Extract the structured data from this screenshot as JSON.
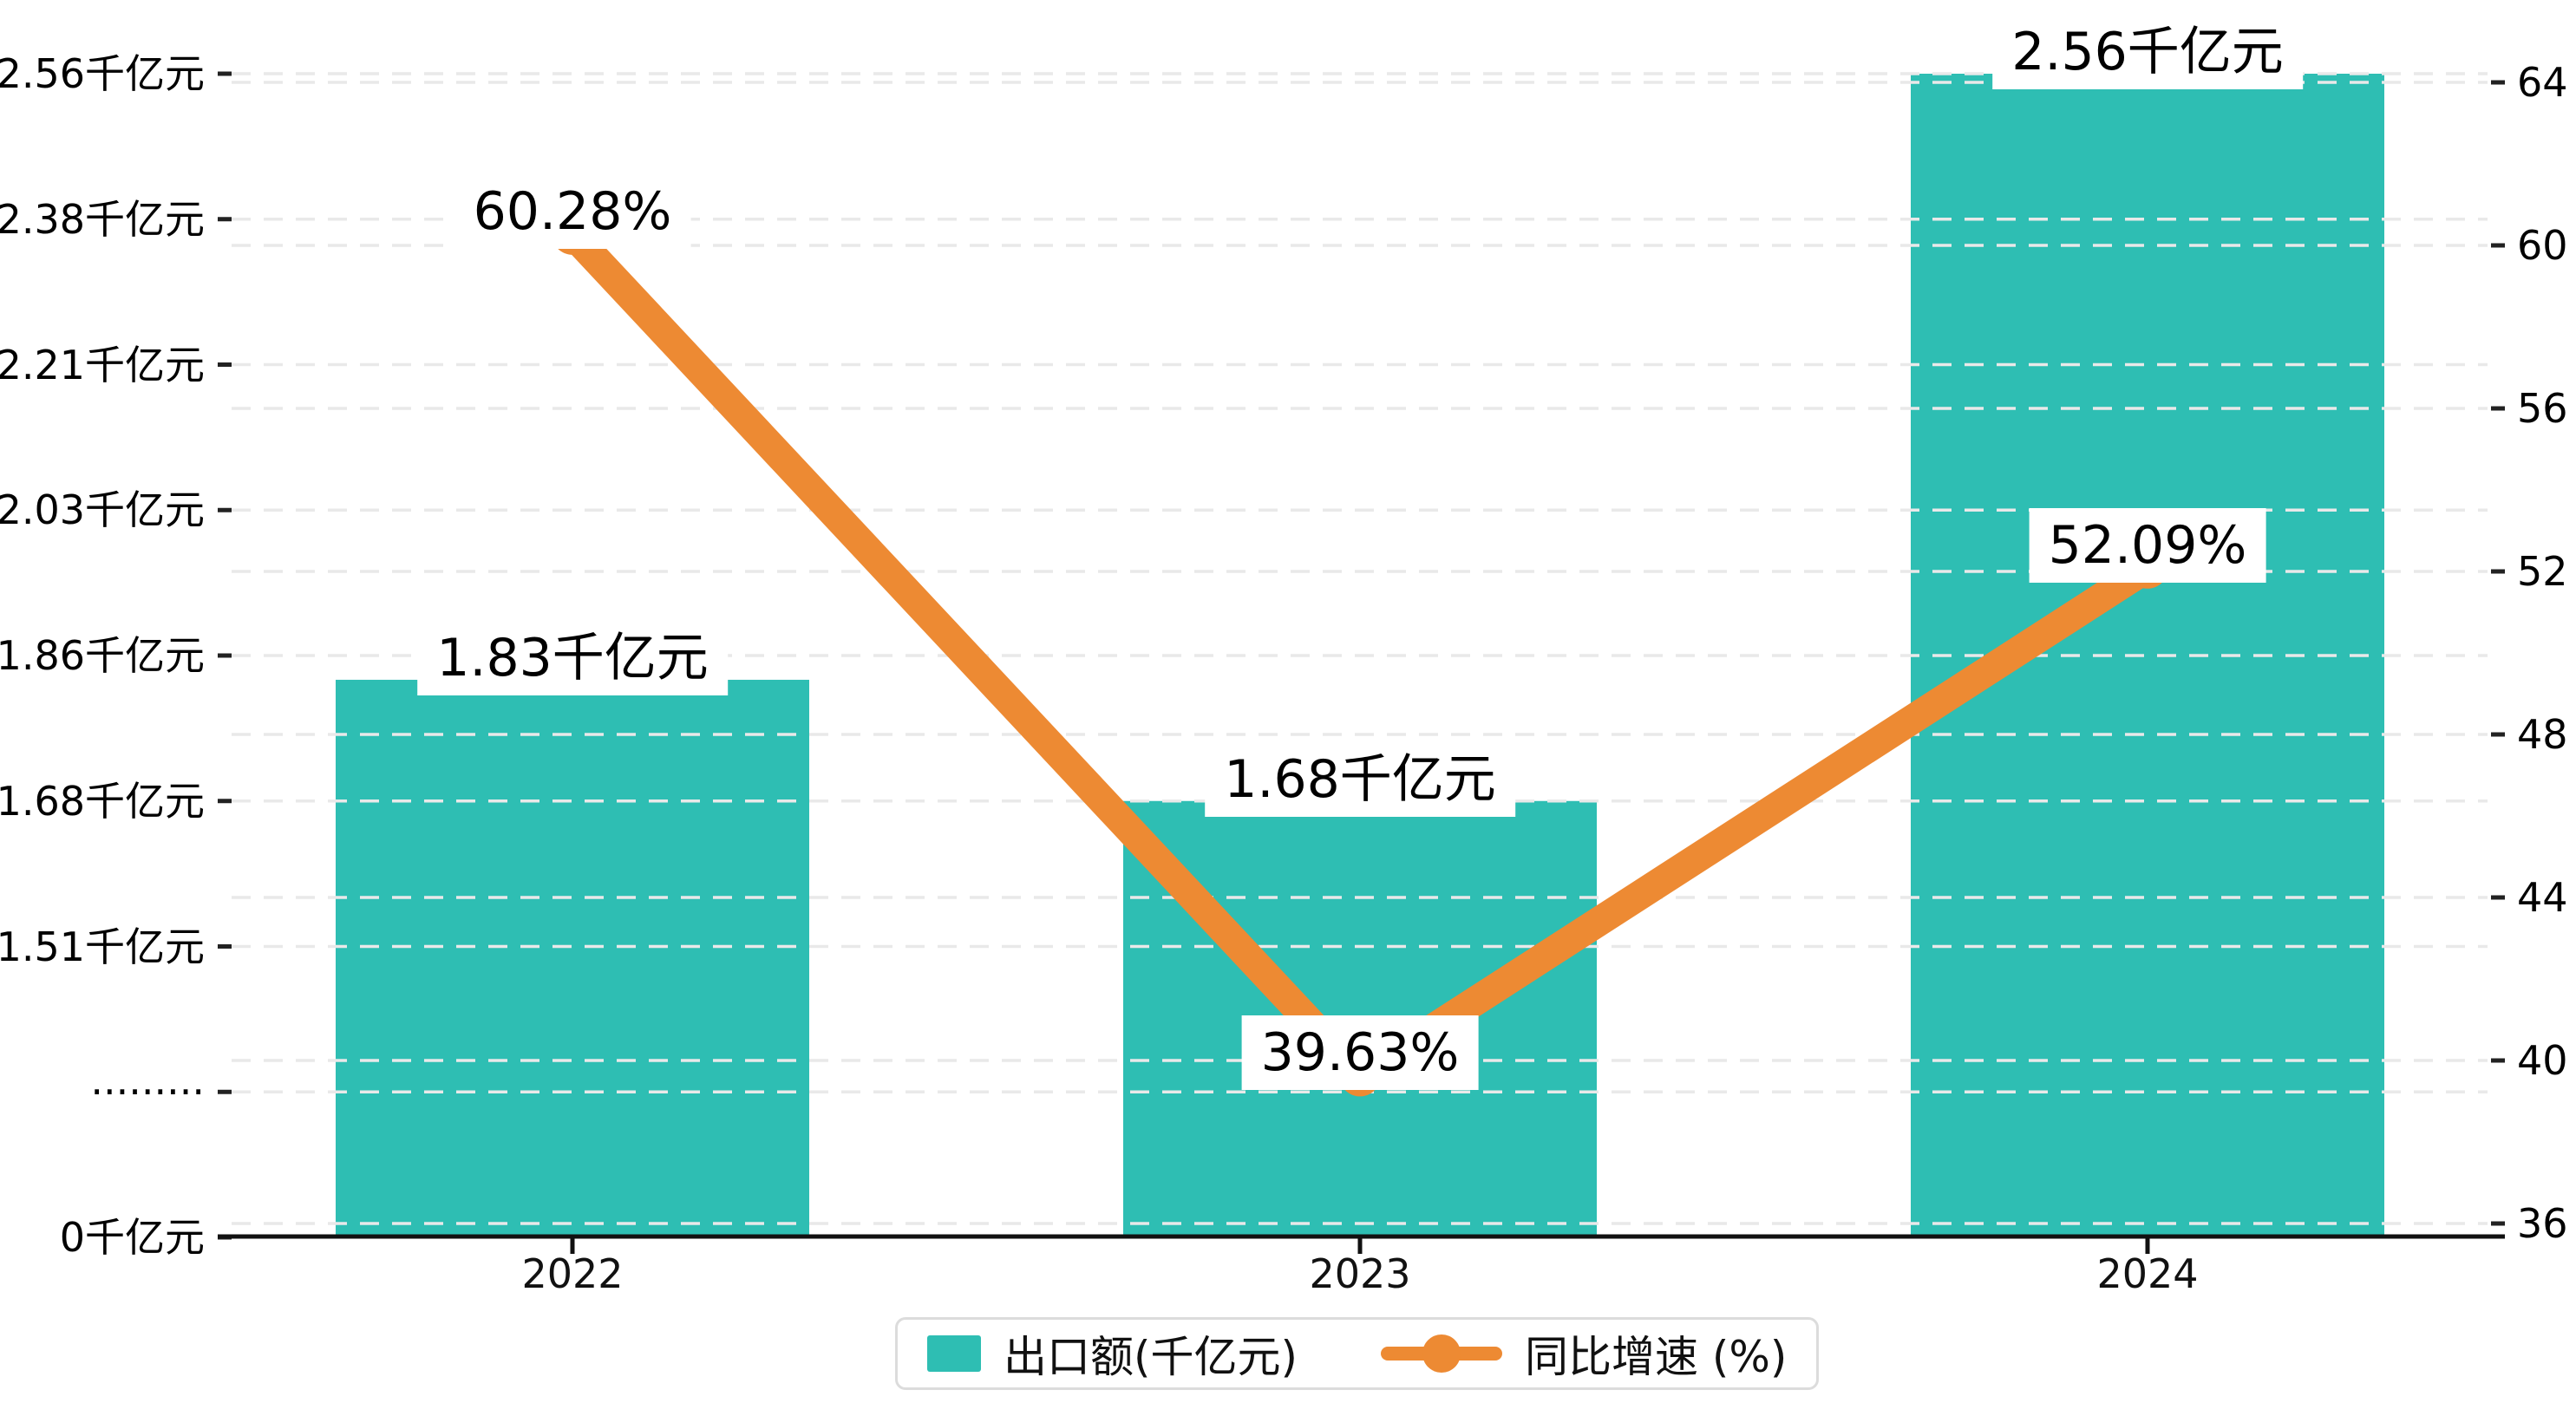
{
  "colors": {
    "bar": "#2EBEB3",
    "line": "#ED8A33",
    "gridline": "#e9e9e9",
    "axis": "#111111",
    "tick": "#222222",
    "label_text": "#000000",
    "legend_border": "#dcdcdc",
    "background": "#ffffff"
  },
  "chart_data": {
    "type": "combo-bar-line",
    "title": "",
    "categories": [
      "2022",
      "2023",
      "2024"
    ],
    "series": [
      {
        "name": "出口额(千亿元)",
        "type": "bar",
        "axis": "left",
        "color": "#2EBEB3",
        "values": [
          1.83,
          1.68,
          2.56
        ],
        "labels": [
          "1.83千亿元",
          "1.68千亿元",
          "2.56千亿元"
        ]
      },
      {
        "name": "同比增速 (%)",
        "type": "line",
        "axis": "right",
        "color": "#ED8A33",
        "values": [
          60.28,
          39.63,
          52.09
        ],
        "labels": [
          "60.28%",
          "39.63%",
          "52.09%"
        ]
      }
    ],
    "left_axis": {
      "tick_labels_top_to_bottom": [
        "2.56千亿元",
        "2.38千亿元",
        "2.21千亿元",
        "2.03千亿元",
        "1.86千亿元",
        "1.68千亿元",
        "1.51千亿元",
        "·········",
        "0千亿元"
      ],
      "tick_values_top_to_bottom": [
        2.56,
        2.38,
        2.21,
        2.03,
        1.86,
        1.68,
        1.51,
        null,
        0
      ],
      "has_axis_break": true,
      "unit": "千亿元"
    },
    "right_axis": {
      "tick_labels_top_to_bottom": [
        "64",
        "60",
        "56",
        "52",
        "48",
        "44",
        "40",
        "36"
      ],
      "min": 36,
      "max": 64,
      "step": 4,
      "unit": "%"
    },
    "grid": true,
    "legend_position": "bottom-center"
  }
}
